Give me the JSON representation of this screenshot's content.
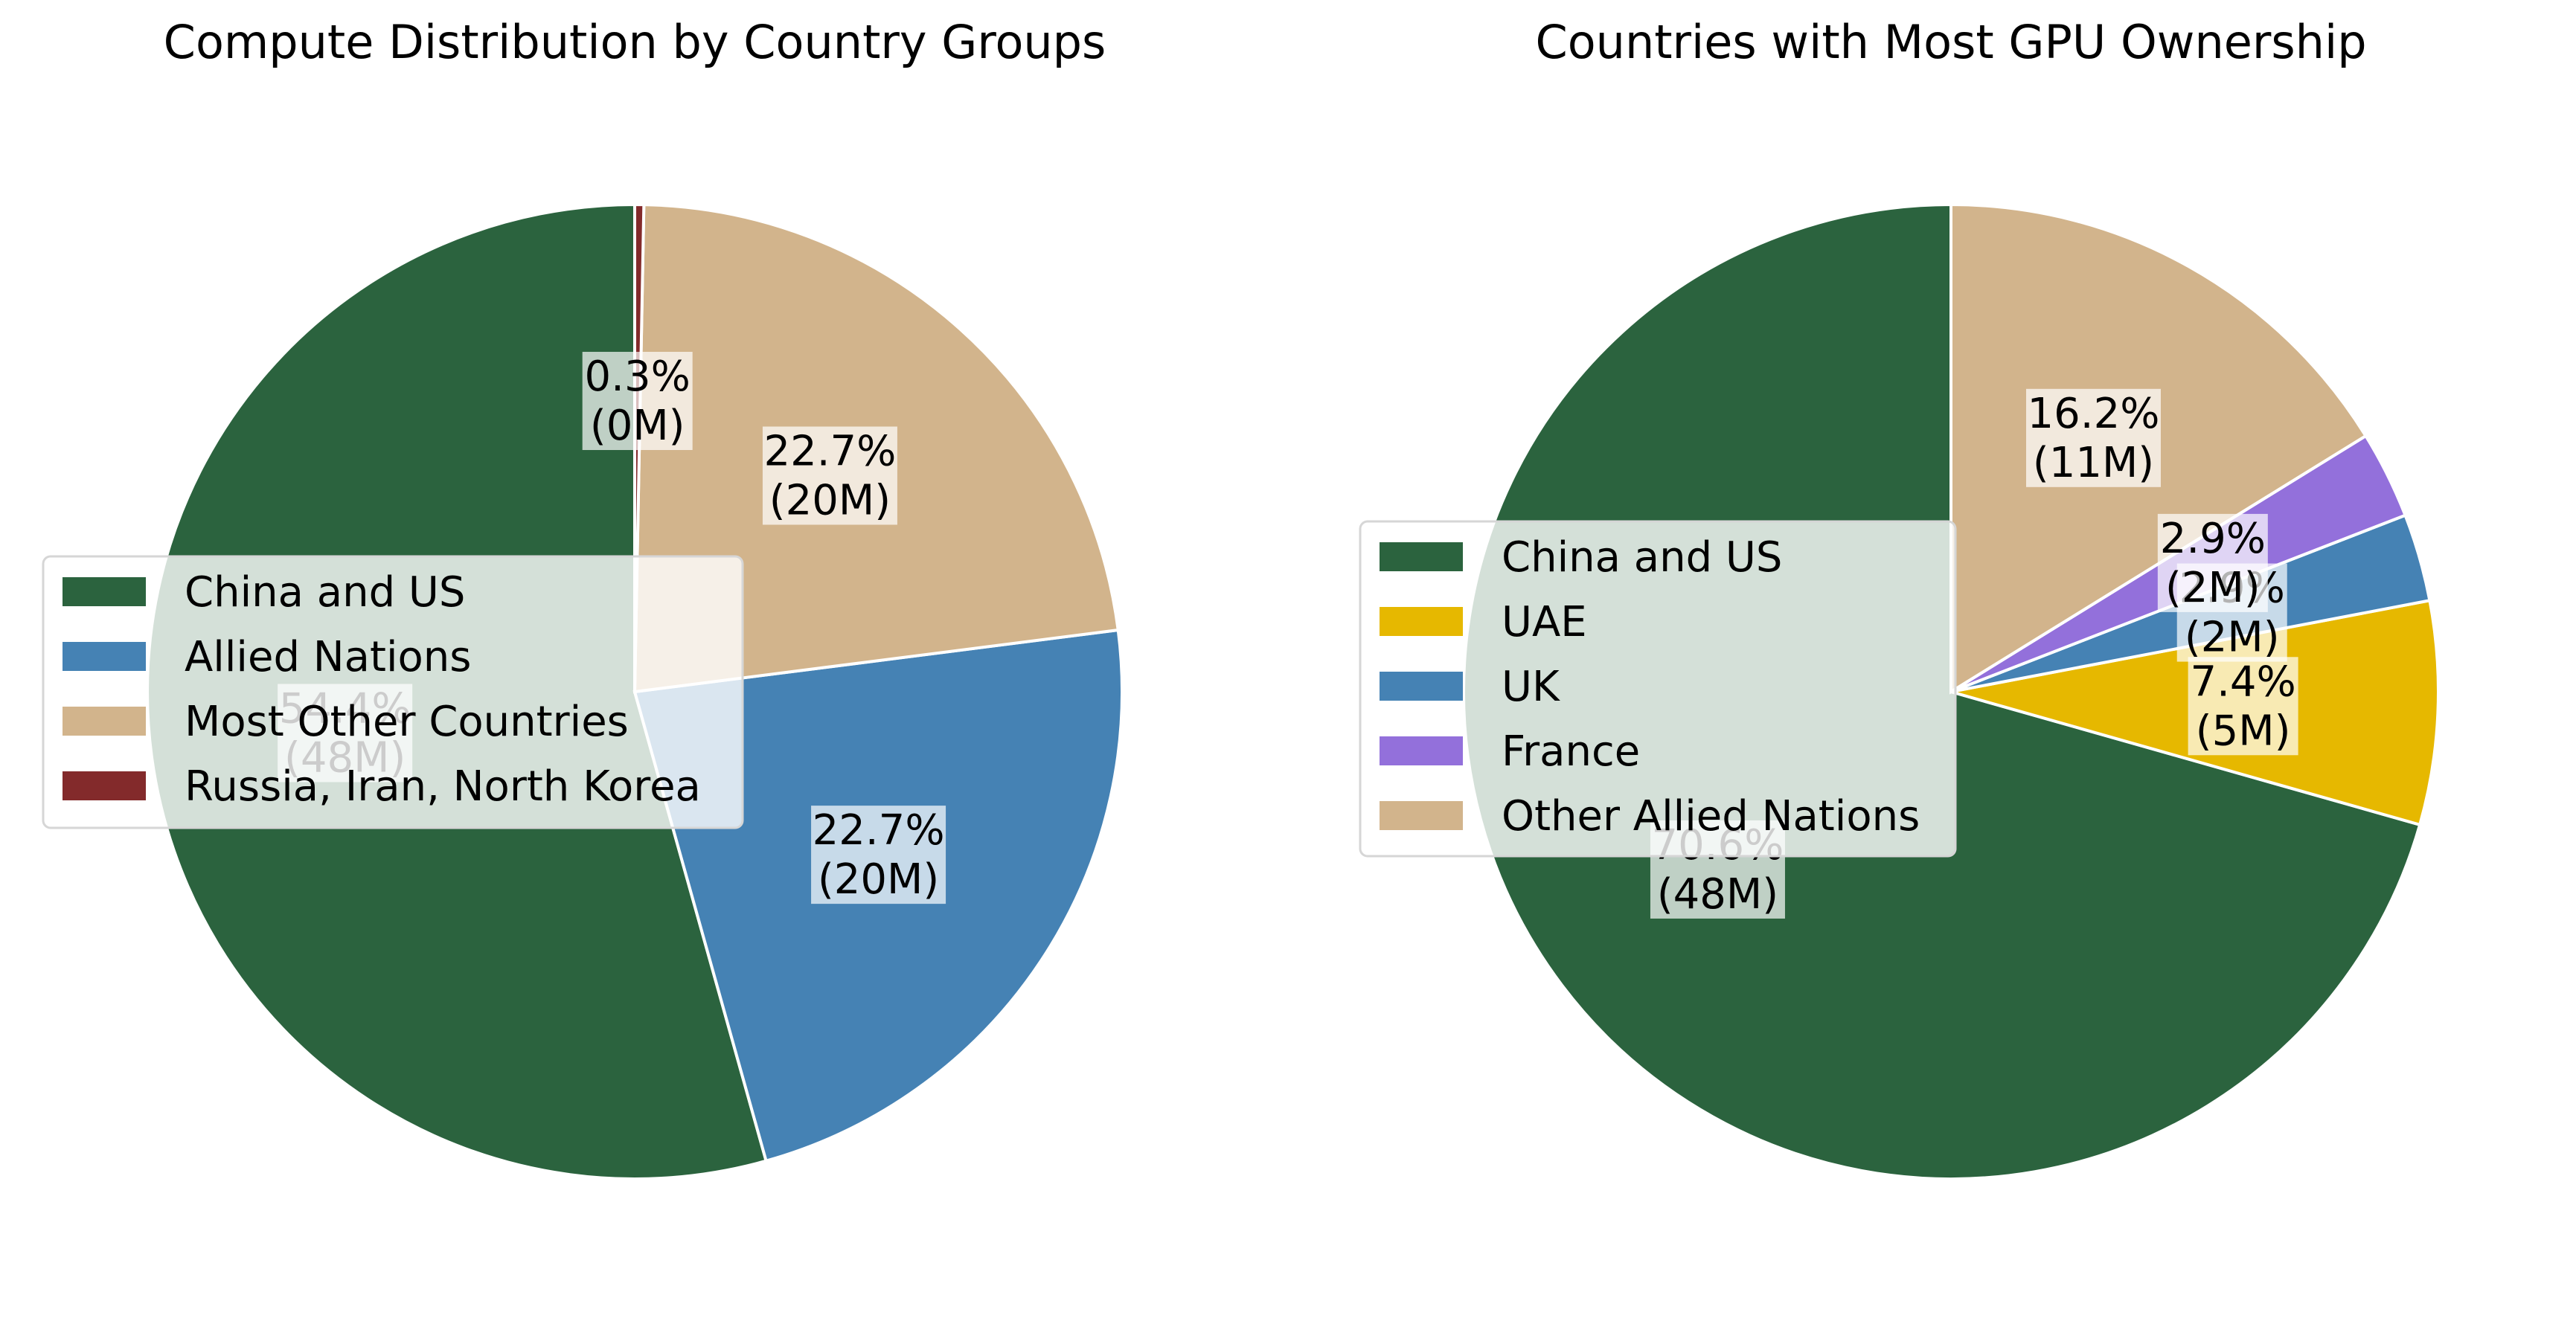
{
  "chart_data": [
    {
      "type": "pie",
      "title": "Compute Distribution by Country Groups",
      "legend_placement": "center-left",
      "slices": [
        {
          "name": "China and US",
          "value": 54.4,
          "pct_label": "54.4%",
          "count_label": "(48M)",
          "color": "#2b633e"
        },
        {
          "name": "Allied Nations",
          "value": 22.7,
          "pct_label": "22.7%",
          "count_label": "(20M)",
          "color": "#4582b4"
        },
        {
          "name": "Most Other Countries",
          "value": 22.7,
          "pct_label": "22.7%",
          "count_label": "(20M)",
          "color": "#d2b48c"
        },
        {
          "name": "Russia, Iran, North Korea",
          "value": 0.3,
          "pct_label": "0.3%",
          "count_label": "(0M)",
          "color": "#832a2b"
        }
      ]
    },
    {
      "type": "pie",
      "title": "Countries with Most GPU Ownership",
      "legend_placement": "center-left",
      "slices": [
        {
          "name": "China and US",
          "value": 70.6,
          "pct_label": "70.6%",
          "count_label": "(48M)",
          "color": "#2b633e"
        },
        {
          "name": "UAE",
          "value": 7.4,
          "pct_label": "7.4%",
          "count_label": "(5M)",
          "color": "#e6b800"
        },
        {
          "name": "UK",
          "value": 2.9,
          "pct_label": "2.9%",
          "count_label": "(2M)",
          "color": "#4582b4"
        },
        {
          "name": "France",
          "value": 2.9,
          "pct_label": "2.9%",
          "count_label": "(2M)",
          "color": "#9370db"
        },
        {
          "name": "Other Allied Nations",
          "value": 16.2,
          "pct_label": "16.2%",
          "count_label": "(11M)",
          "color": "#d2b48c"
        }
      ]
    }
  ]
}
